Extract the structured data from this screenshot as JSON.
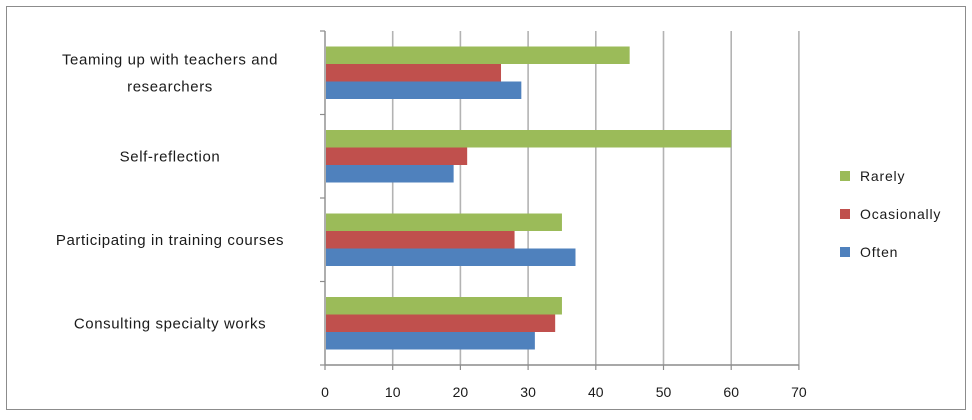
{
  "chart_data": {
    "type": "bar",
    "orientation": "horizontal",
    "categories": [
      "Teaming up with teachers and researchers",
      "Self-reflection",
      "Participating in training courses",
      "Consulting specialty works"
    ],
    "category_lines": [
      [
        "Teaming up with teachers and",
        "researchers"
      ],
      [
        "Self-reflection"
      ],
      [
        "Participating in training courses"
      ],
      [
        "Consulting specialty works"
      ]
    ],
    "series": [
      {
        "name": "Rarely",
        "color": "#9bbb59",
        "values": [
          45,
          60,
          35,
          35
        ]
      },
      {
        "name": "Ocasionally",
        "color": "#c0504d",
        "values": [
          26,
          21,
          28,
          34
        ]
      },
      {
        "name": "Often",
        "color": "#4f81bd",
        "values": [
          29,
          19,
          37,
          31
        ]
      }
    ],
    "xlim": [
      0,
      70
    ],
    "xticks": [
      0,
      10,
      20,
      30,
      40,
      50,
      60,
      70
    ],
    "grid": true,
    "legend": "right",
    "title": "",
    "xlabel": "",
    "ylabel": ""
  }
}
